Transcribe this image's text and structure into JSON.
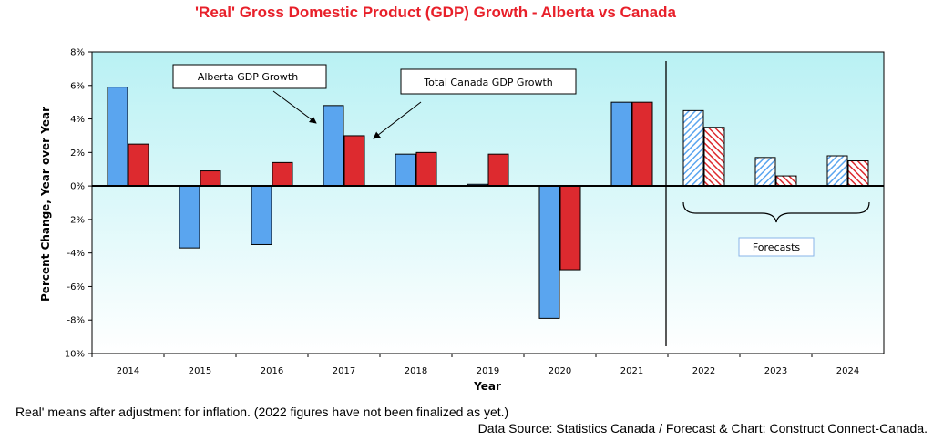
{
  "chart_data": {
    "type": "bar",
    "title": "'Real' Gross Domestic Product (GDP) Growth - Alberta vs Canada",
    "xlabel": "Year",
    "ylabel": "Percent Change, Year over Year",
    "ylim": [
      -10,
      8
    ],
    "yticks": [
      "8%",
      "6%",
      "4%",
      "2%",
      "0%",
      "-2%",
      "-4%",
      "-6%",
      "-8%",
      "-10%"
    ],
    "categories": [
      "2014",
      "2015",
      "2016",
      "2017",
      "2018",
      "2019",
      "2020",
      "2021",
      "2022",
      "2023",
      "2024"
    ],
    "series": [
      {
        "name": "Alberta  GDP Growth",
        "color": "#5aa5ef",
        "values": [
          5.9,
          -3.7,
          -3.5,
          4.8,
          1.9,
          0.1,
          -7.9,
          5.0,
          4.5,
          1.7,
          1.8
        ]
      },
      {
        "name": "Total Canada GDP Growth",
        "color": "#dd2a2f",
        "values": [
          2.5,
          0.9,
          1.4,
          3.0,
          2.0,
          1.9,
          -5.0,
          5.0,
          3.5,
          0.6,
          1.5
        ]
      }
    ],
    "forecast_categories": [
      "2022",
      "2023",
      "2024"
    ],
    "forecast_label": "Forecasts",
    "grid": false,
    "legend": "callout boxes with arrows"
  },
  "footnote": "Real' means after adjustment for inflation. (2022 figures have not been finalized as yet.)",
  "source": "Data Source: Statistics Canada / Forecast & Chart: Construct Connect-Canada."
}
